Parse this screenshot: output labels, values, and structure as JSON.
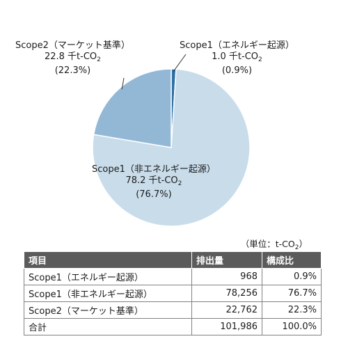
{
  "chart_data": {
    "type": "pie",
    "slices": [
      {
        "key": "s1e",
        "value": 1.0,
        "percent": 0.9,
        "color": "#2e6ea3",
        "label_name": "Scope1（エネルギー起源）",
        "label_value": "1.0 千t-CO",
        "label_sub": "2",
        "label_percent": "(0.9%)"
      },
      {
        "key": "s1n",
        "value": 78.2,
        "percent": 76.7,
        "color": "#c9dcea",
        "label_name": "Scope1（非エネルギー起源）",
        "label_value": "78.2 千t-CO",
        "label_sub": "2",
        "label_percent": "(76.7%)"
      },
      {
        "key": "s2",
        "value": 22.8,
        "percent": 22.3,
        "color": "#93b8d6",
        "label_name": "Scope2（マーケット基準）",
        "label_value": "22.8 千t-CO",
        "label_sub": "2",
        "label_percent": "(22.3%)"
      }
    ]
  },
  "unit_note": {
    "prefix": "（単位：t-CO",
    "sub": "2",
    "suffix": "）"
  },
  "table": {
    "headers": [
      "項目",
      "排出量",
      "構成比"
    ],
    "rows": [
      [
        "Scope1（エネルギー起源）",
        "968",
        "0.9%"
      ],
      [
        "Scope1（非エネルギー起源）",
        "78,256",
        "76.7%"
      ],
      [
        "Scope2（マーケット基準）",
        "22,762",
        "22.3%"
      ],
      [
        "合計",
        "101,986",
        "100.0%"
      ]
    ]
  }
}
